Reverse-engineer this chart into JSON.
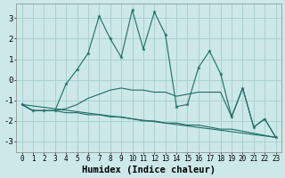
{
  "xlabel": "Humidex (Indice chaleur)",
  "xlim": [
    -0.5,
    23.5
  ],
  "ylim": [
    -3.5,
    3.7
  ],
  "yticks": [
    -3,
    -2,
    -1,
    0,
    1,
    2,
    3
  ],
  "xticks": [
    0,
    1,
    2,
    3,
    4,
    5,
    6,
    7,
    8,
    9,
    10,
    11,
    12,
    13,
    14,
    15,
    16,
    17,
    18,
    19,
    20,
    21,
    22,
    23
  ],
  "background_color": "#cce8e8",
  "line_color": "#1e6e65",
  "grid_color": "#a8cccc",
  "line1_x": [
    0,
    1,
    2,
    3,
    4,
    5,
    6,
    7,
    8,
    9,
    10,
    11,
    12,
    13,
    14,
    15,
    16,
    17,
    18,
    19,
    20,
    21,
    22,
    23
  ],
  "line1_y": [
    -1.2,
    -1.5,
    -1.5,
    -1.5,
    -0.2,
    0.5,
    1.3,
    3.1,
    2.0,
    1.1,
    3.4,
    1.5,
    3.3,
    2.2,
    -1.3,
    -1.2,
    0.6,
    1.4,
    0.3,
    -1.8,
    -0.4,
    -2.3,
    -1.9,
    -2.8
  ],
  "line2_x": [
    0,
    1,
    2,
    3,
    4,
    5,
    6,
    7,
    8,
    9,
    10,
    11,
    12,
    13,
    14,
    15,
    16,
    17,
    18,
    19,
    20,
    21,
    22,
    23
  ],
  "line2_y": [
    -1.2,
    -1.5,
    -1.5,
    -1.5,
    -1.4,
    -1.2,
    -0.9,
    -0.7,
    -0.5,
    -0.4,
    -0.5,
    -0.5,
    -0.6,
    -0.6,
    -0.8,
    -0.7,
    -0.6,
    -0.6,
    -0.6,
    -1.8,
    -0.4,
    -2.3,
    -1.9,
    -2.8
  ],
  "line3_x": [
    0,
    1,
    2,
    3,
    4,
    5,
    6,
    7,
    8,
    9,
    10,
    11,
    12,
    13,
    14,
    15,
    16,
    17,
    18,
    19,
    20,
    21,
    22,
    23
  ],
  "line3_y": [
    -1.2,
    -1.5,
    -1.5,
    -1.5,
    -1.6,
    -1.6,
    -1.7,
    -1.7,
    -1.8,
    -1.8,
    -1.9,
    -2.0,
    -2.0,
    -2.1,
    -2.1,
    -2.2,
    -2.2,
    -2.3,
    -2.4,
    -2.4,
    -2.5,
    -2.6,
    -2.7,
    -2.8
  ],
  "line4_x": [
    0,
    23
  ],
  "line4_y": [
    -1.2,
    -2.8
  ]
}
